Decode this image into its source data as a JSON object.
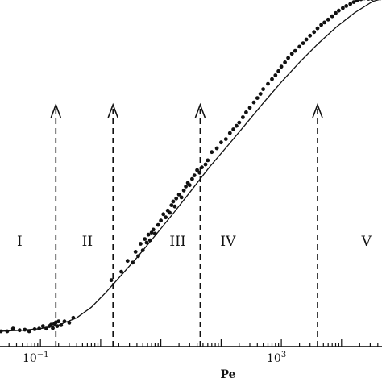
{
  "chart_data": {
    "type": "scatter",
    "title": "",
    "xlabel": "Pe",
    "ylabel": "",
    "x_scale": "log",
    "x_range": [
      0.02,
      50000
    ],
    "y_scale": "log",
    "y_range": [
      0.85,
      300
    ],
    "x_ticks": [
      {
        "label_base": "10",
        "label_exp": "−1",
        "value": 0.1
      },
      {
        "label_base": "10",
        "label_exp": "3",
        "value": 1000
      }
    ],
    "grid": false,
    "legend": "none",
    "regions": [
      {
        "label": "I",
        "x": 0.045
      },
      {
        "label": "II",
        "x": 0.6
      },
      {
        "label": "III",
        "x": 19
      },
      {
        "label": "IV",
        "x": 130
      },
      {
        "label": "V",
        "x": 26000
      }
    ],
    "boundaries": [
      0.18,
      1.6,
      45,
      4000
    ],
    "fit_curve": {
      "x": [
        0.02,
        0.05,
        0.1,
        0.2,
        0.4,
        0.7,
        1.2,
        2,
        4,
        8,
        16,
        32,
        64,
        128,
        256,
        512,
        1024,
        2048,
        4096,
        8192,
        16384,
        32768,
        50000
      ],
      "y": [
        1.1,
        1.12,
        1.15,
        1.22,
        1.38,
        1.65,
        2.1,
        2.7,
        3.8,
        5.5,
        8.0,
        11.8,
        17.5,
        25,
        36,
        52,
        74,
        103,
        140,
        185,
        235,
        285,
        300
      ]
    },
    "series": [
      {
        "x": [
          0.022,
          0.028,
          0.035,
          0.045,
          0.055,
          0.065,
          0.08,
          0.095,
          0.11,
          0.125,
          0.14,
          0.15,
          0.16,
          0.17,
          0.18,
          0.19,
          0.2,
          0.22,
          0.25,
          0.3,
          0.35,
          1.5,
          2.2,
          2.8,
          3.4,
          3.8,
          4.2,
          4.6,
          5.0,
          5.4,
          5.8,
          6.2,
          6.6,
          7.0,
          7.5,
          8.0,
          9.0,
          10,
          11,
          12,
          13,
          14,
          15,
          16,
          17,
          18,
          20,
          22,
          24,
          26,
          28,
          30,
          33,
          36,
          40,
          44,
          48,
          55,
          60,
          70,
          85,
          100,
          120,
          140,
          160,
          180,
          200,
          230,
          260,
          300,
          350,
          400,
          450,
          500,
          600,
          700,
          800,
          900,
          1000,
          1150,
          1300,
          1500,
          1700,
          2000,
          2300,
          2600,
          3000,
          3500,
          4000,
          4600,
          5200,
          6000,
          7000,
          8000,
          9000,
          10500,
          12000,
          14000,
          16000,
          18000,
          21000,
          24000,
          28000,
          32000,
          38000,
          44000
        ],
        "y": [
          1.1,
          1.1,
          1.15,
          1.12,
          1.13,
          1.1,
          1.14,
          1.15,
          1.2,
          1.15,
          1.2,
          1.23,
          1.16,
          1.25,
          1.28,
          1.2,
          1.3,
          1.22,
          1.3,
          1.27,
          1.38,
          2.6,
          3.0,
          3.6,
          3.5,
          4.2,
          3.9,
          4.8,
          4.3,
          5.2,
          4.9,
          5.6,
          5.1,
          5.8,
          6.1,
          5.7,
          6.6,
          7.1,
          7.9,
          7.5,
          8.4,
          8.1,
          9.2,
          9.8,
          9.0,
          10.3,
          11.0,
          10.5,
          11.8,
          12.6,
          13.4,
          12.9,
          14.3,
          15.2,
          16.6,
          15.9,
          17.4,
          18.3,
          19.6,
          22.5,
          24.0,
          26.5,
          28.0,
          31.0,
          33.0,
          35.0,
          37.0,
          40.5,
          44.0,
          47.5,
          52.0,
          56.0,
          60.0,
          65.0,
          71.0,
          77.0,
          82.0,
          88.0,
          95.0,
          102,
          110,
          118,
          124,
          133,
          141,
          150,
          160,
          170,
          181,
          192,
          200,
          210,
          222,
          234,
          244,
          255,
          264,
          273,
          282,
          290,
          296,
          300,
          298,
          297,
          299,
          300
        ]
      }
    ]
  }
}
